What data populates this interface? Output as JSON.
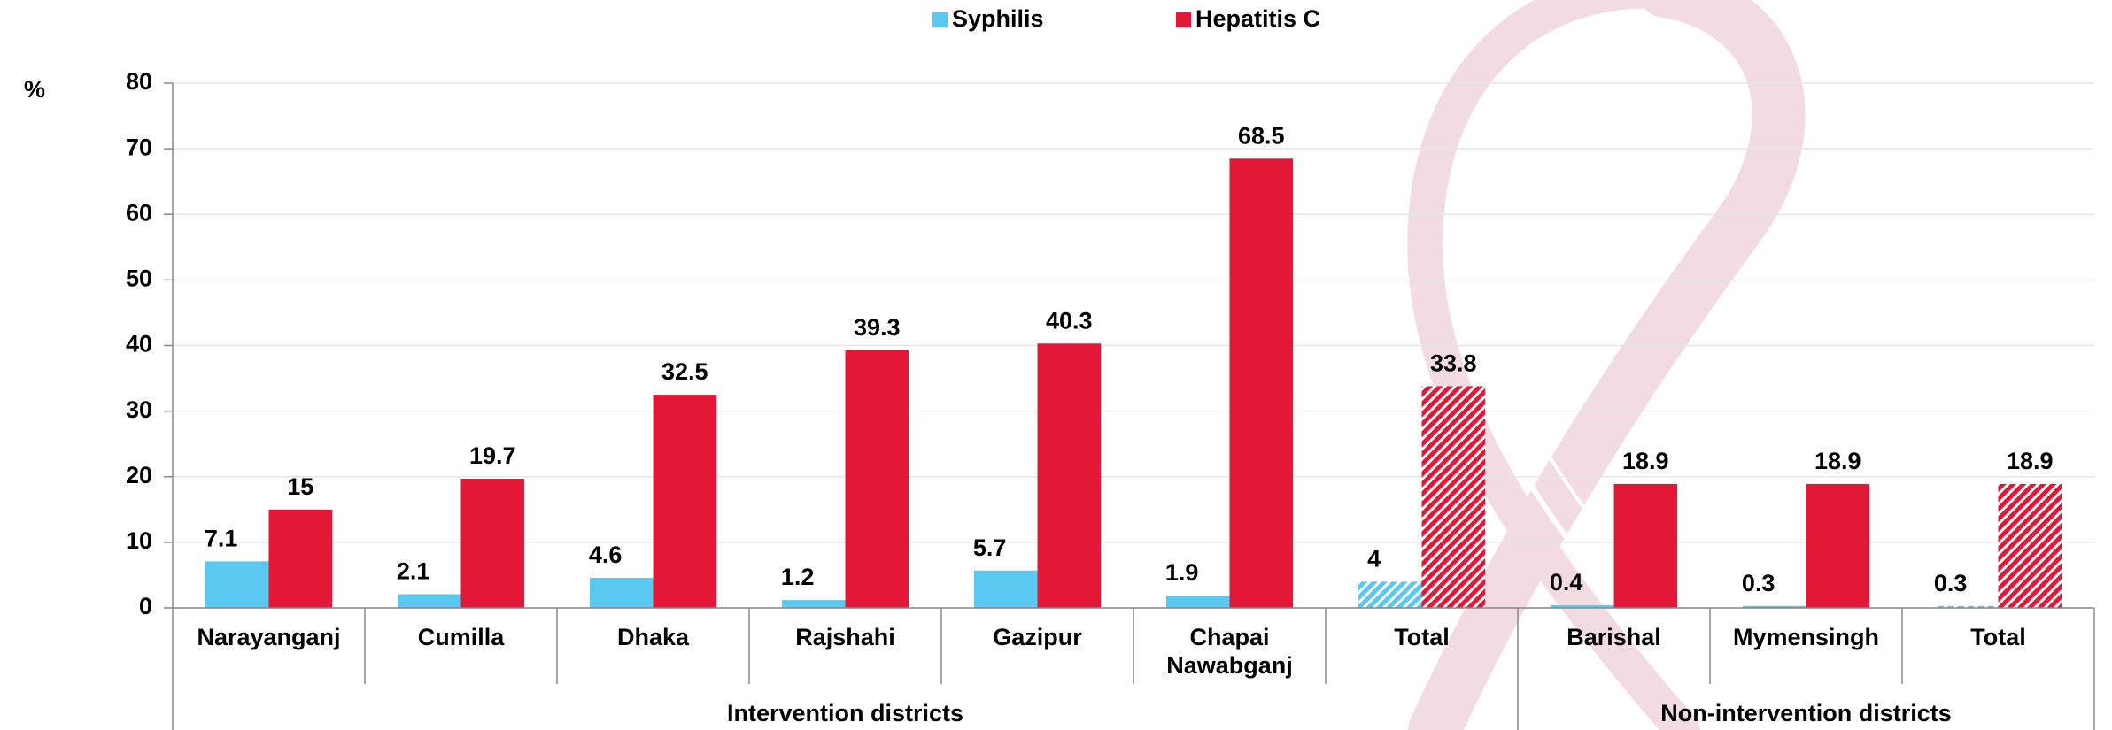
{
  "chart_data": {
    "type": "bar",
    "y_label": "%",
    "groups": [
      {
        "name": "Intervention districts",
        "categories": [
          "Narayanganj",
          "Cumilla",
          "Dhaka",
          "Rajshahi",
          "Gazipur",
          "Chapai Nawabganj",
          "Total"
        ]
      },
      {
        "name": "Non-intervention districts",
        "categories": [
          "Barishal",
          "Mymensingh",
          "Total"
        ]
      }
    ],
    "series": [
      {
        "name": "Syphilis",
        "color": "#5bc8f0",
        "values": [
          7.1,
          2.1,
          4.6,
          1.2,
          5.7,
          1.9,
          4,
          0.4,
          0.3,
          0.3
        ]
      },
      {
        "name": "Hepatitis C",
        "color": "#e31837",
        "values": [
          15,
          19.7,
          32.5,
          39.3,
          40.3,
          68.5,
          33.8,
          18.9,
          18.9,
          18.9
        ]
      }
    ],
    "hatched": [
      false,
      false,
      false,
      false,
      false,
      false,
      true,
      false,
      false,
      true
    ],
    "ylim": [
      0,
      80
    ],
    "yticks": [
      0,
      10,
      20,
      30,
      40,
      50,
      60,
      70,
      80
    ],
    "grid": true,
    "legend": "top"
  }
}
